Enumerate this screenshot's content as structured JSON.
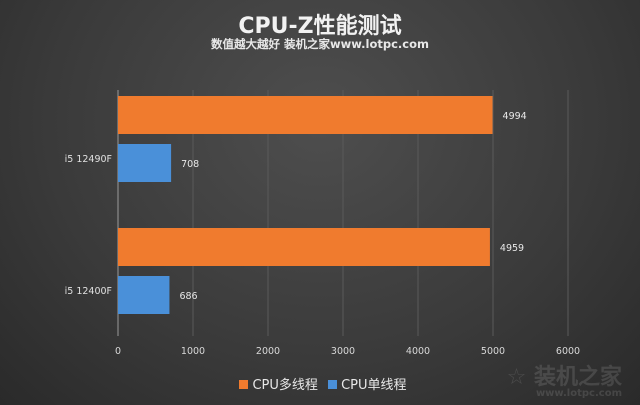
{
  "chart_data": {
    "type": "bar",
    "orientation": "horizontal",
    "title": "CPU-Z性能测试",
    "subtitle": "数值越大越好 装机之家www.lotpc.com",
    "categories": [
      "i5 12490F",
      "i5 12400F"
    ],
    "series": [
      {
        "name": "CPU多线程",
        "color": "#f07b2e",
        "values": [
          4994,
          4959
        ]
      },
      {
        "name": "CPU单线程",
        "color": "#4a90d9",
        "values": [
          708,
          686
        ]
      }
    ],
    "xlim": [
      0,
      6000
    ],
    "xticks": [
      0,
      1000,
      2000,
      3000,
      4000,
      5000,
      6000
    ],
    "grid": true,
    "legend": "bottom"
  },
  "watermark": {
    "text": "装机之家",
    "url": "www.lotpc.com"
  }
}
